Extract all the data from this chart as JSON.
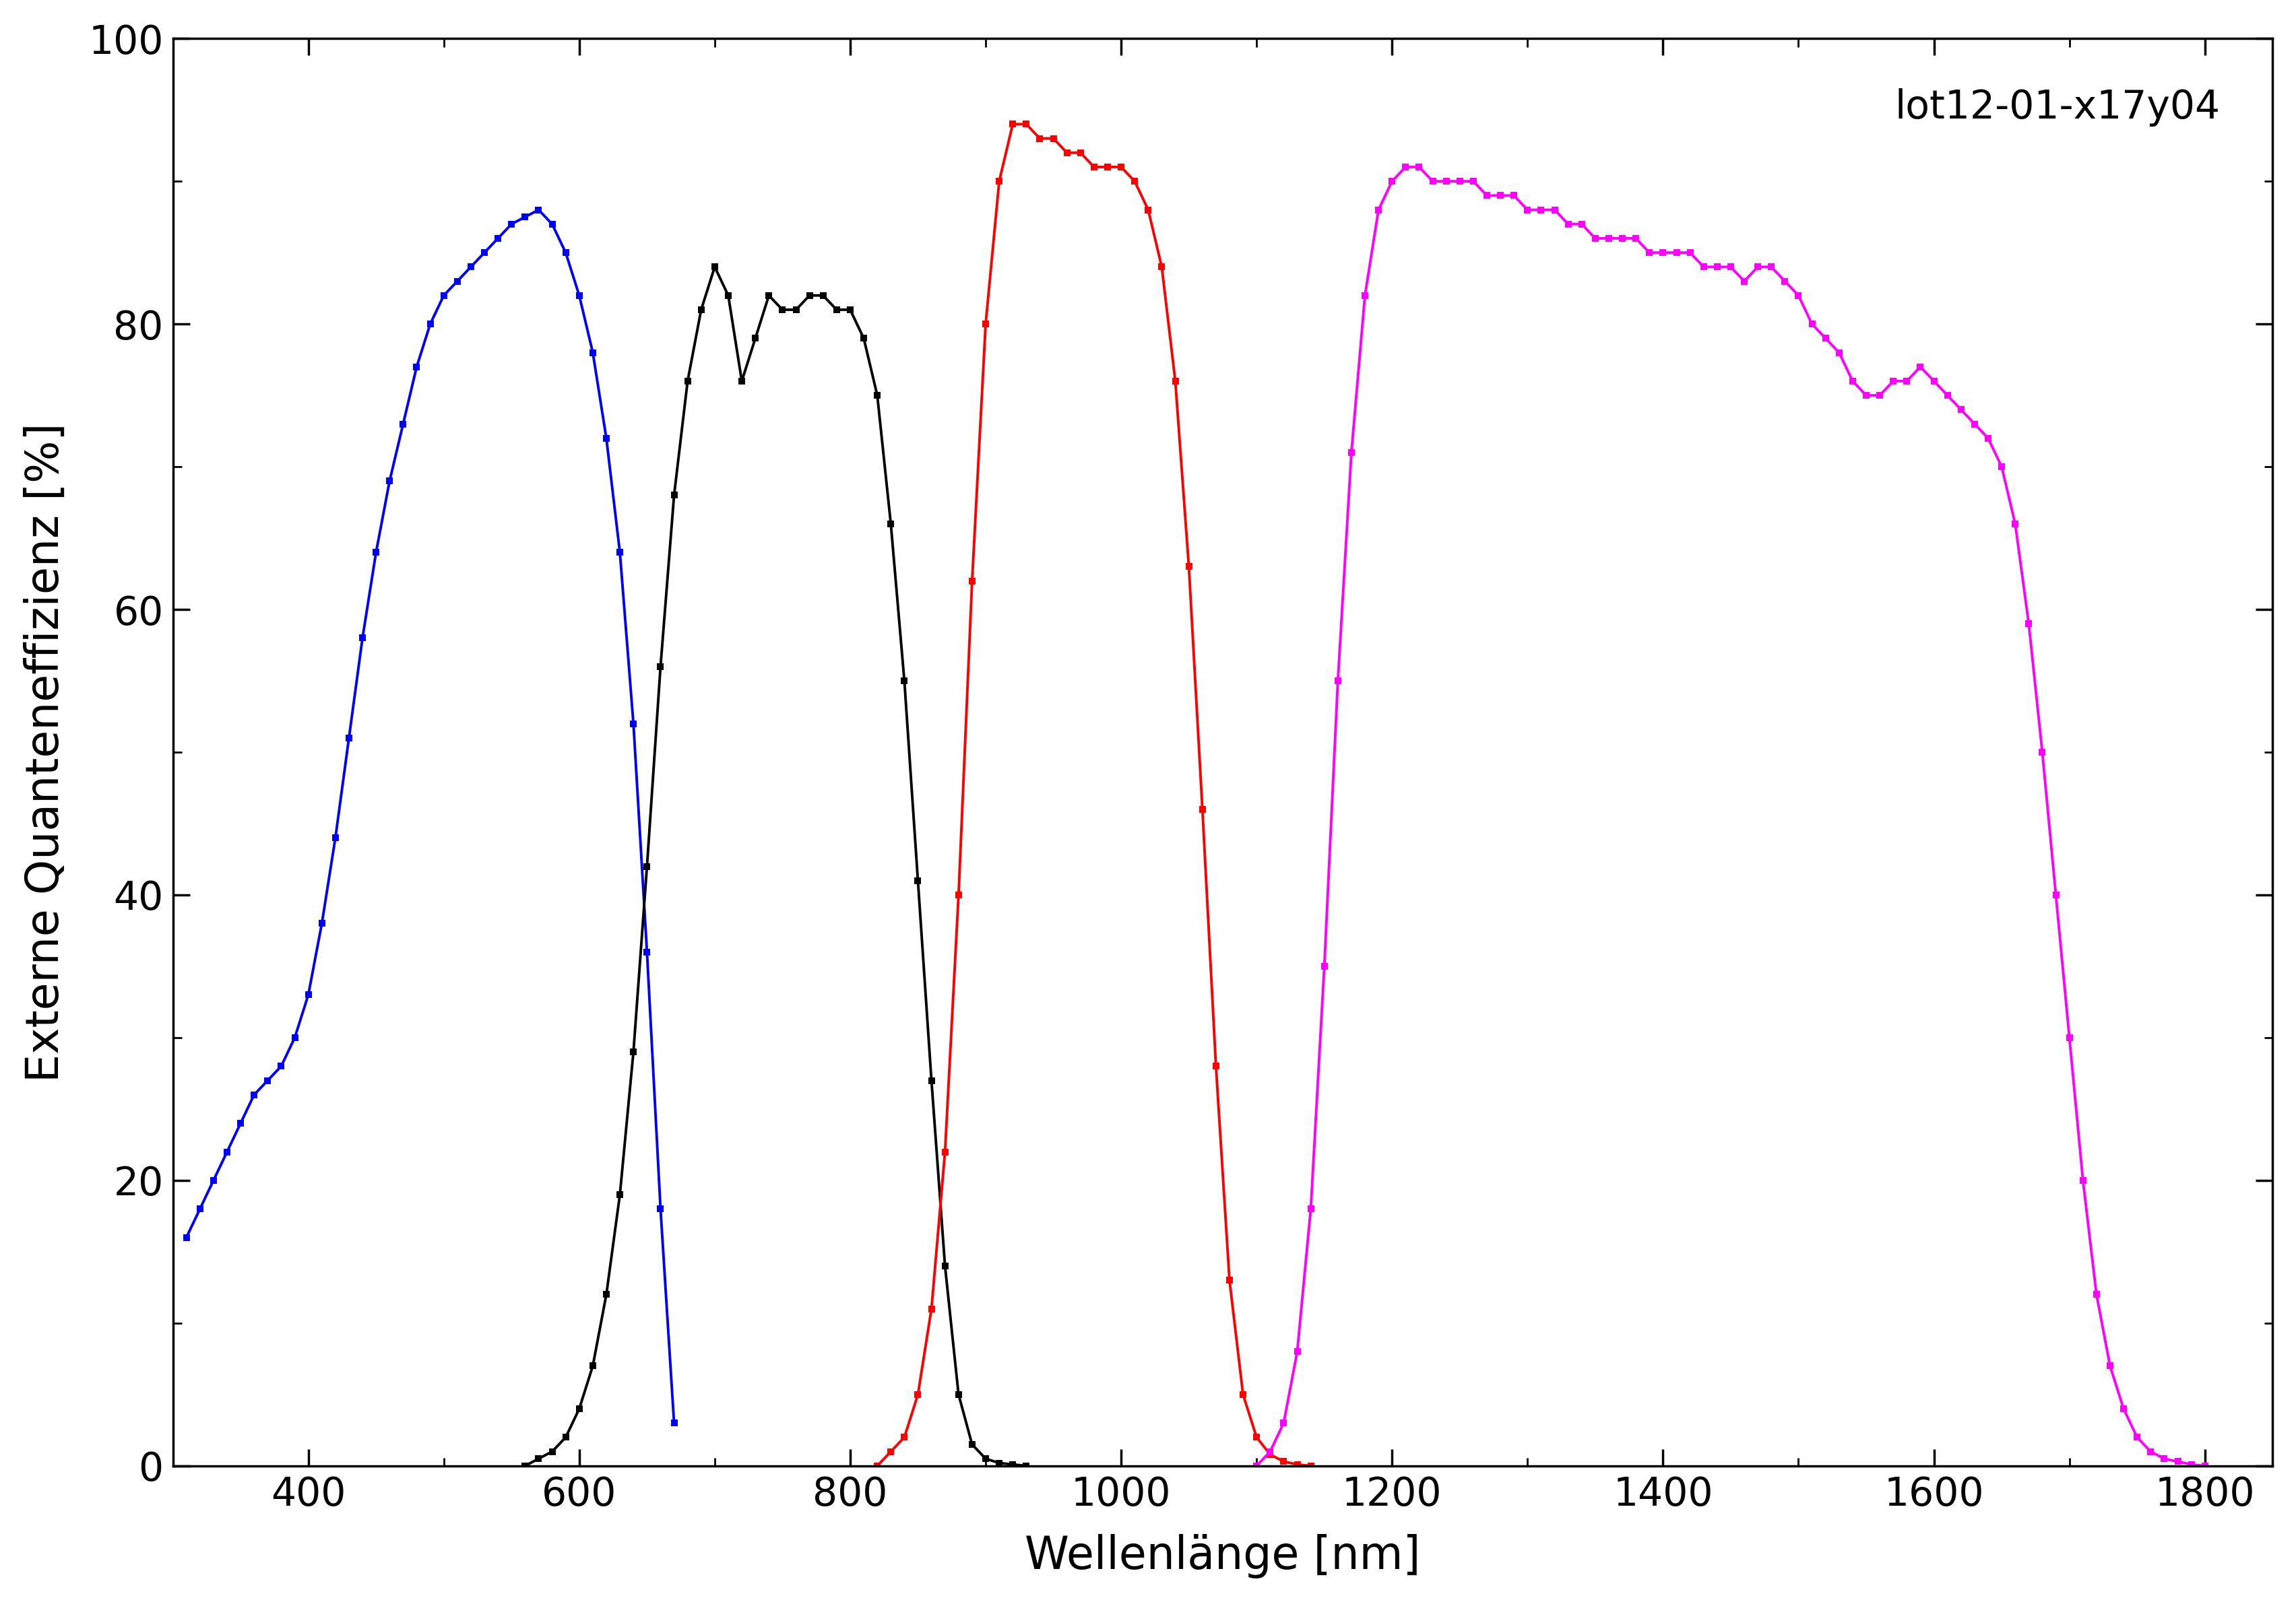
{
  "title": "lot12-01-x17y04",
  "xlabel": "Wellenlänge [nm]",
  "ylabel": "Externe Quanteneffizienz [%]",
  "xlim": [
    300,
    1850
  ],
  "ylim": [
    0,
    100
  ],
  "xticks": [
    400,
    600,
    800,
    1000,
    1200,
    1400,
    1600,
    1800
  ],
  "yticks": [
    0,
    20,
    40,
    60,
    80,
    100
  ],
  "background_color": "#ffffff",
  "line_width": 2.8,
  "marker_size": 7.0,
  "curves": {
    "blue": {
      "color": "#0000ff",
      "x": [
        310,
        320,
        330,
        340,
        350,
        360,
        370,
        380,
        390,
        400,
        410,
        420,
        430,
        440,
        450,
        460,
        470,
        480,
        490,
        500,
        510,
        520,
        530,
        540,
        550,
        560,
        570,
        580,
        590,
        600,
        610,
        620,
        630,
        640,
        650,
        660,
        670
      ],
      "y": [
        16,
        18,
        20,
        22,
        24,
        26,
        27,
        28,
        30,
        33,
        38,
        44,
        51,
        58,
        64,
        69,
        73,
        77,
        80,
        82,
        83,
        84,
        85,
        86,
        87,
        87.5,
        88,
        87,
        85,
        82,
        78,
        72,
        64,
        52,
        36,
        18,
        3
      ]
    },
    "black": {
      "color": "#000000",
      "x": [
        560,
        570,
        580,
        590,
        600,
        610,
        620,
        630,
        640,
        650,
        660,
        670,
        680,
        690,
        700,
        710,
        720,
        730,
        740,
        750,
        760,
        770,
        780,
        790,
        800,
        810,
        820,
        830,
        840,
        850,
        860,
        870,
        880,
        890,
        900,
        910,
        920,
        930
      ],
      "y": [
        0,
        0.5,
        1,
        2,
        4,
        7,
        12,
        19,
        29,
        42,
        56,
        68,
        76,
        81,
        84,
        82,
        76,
        79,
        82,
        81,
        81,
        82,
        82,
        81,
        81,
        79,
        75,
        66,
        55,
        41,
        27,
        14,
        5,
        1.5,
        0.5,
        0.2,
        0.1,
        0
      ]
    },
    "red": {
      "color": "#ff0000",
      "x": [
        820,
        830,
        840,
        850,
        860,
        870,
        880,
        890,
        900,
        910,
        920,
        930,
        940,
        950,
        960,
        970,
        980,
        990,
        1000,
        1010,
        1020,
        1030,
        1040,
        1050,
        1060,
        1070,
        1080,
        1090,
        1100,
        1110,
        1120,
        1130,
        1140
      ],
      "y": [
        0,
        1,
        2,
        5,
        11,
        22,
        40,
        62,
        80,
        90,
        94,
        94,
        93,
        93,
        92,
        92,
        91,
        91,
        91,
        90,
        88,
        84,
        76,
        63,
        46,
        28,
        13,
        5,
        2,
        0.8,
        0.3,
        0.1,
        0
      ]
    },
    "magenta": {
      "color": "#ff00ff",
      "x": [
        1100,
        1110,
        1120,
        1130,
        1140,
        1150,
        1160,
        1170,
        1180,
        1190,
        1200,
        1210,
        1220,
        1230,
        1240,
        1250,
        1260,
        1270,
        1280,
        1290,
        1300,
        1310,
        1320,
        1330,
        1340,
        1350,
        1360,
        1370,
        1380,
        1390,
        1400,
        1410,
        1420,
        1430,
        1440,
        1450,
        1460,
        1470,
        1480,
        1490,
        1500,
        1510,
        1520,
        1530,
        1540,
        1550,
        1560,
        1570,
        1580,
        1590,
        1600,
        1610,
        1620,
        1630,
        1640,
        1650,
        1660,
        1670,
        1680,
        1690,
        1700,
        1710,
        1720,
        1730,
        1740,
        1750,
        1760,
        1770,
        1780,
        1790,
        1800
      ],
      "y": [
        0,
        1,
        3,
        8,
        18,
        35,
        55,
        71,
        82,
        88,
        90,
        91,
        91,
        90,
        90,
        90,
        90,
        89,
        89,
        89,
        88,
        88,
        88,
        87,
        87,
        86,
        86,
        86,
        86,
        85,
        85,
        85,
        85,
        84,
        84,
        84,
        83,
        84,
        84,
        83,
        82,
        80,
        79,
        78,
        76,
        75,
        75,
        76,
        76,
        77,
        76,
        75,
        74,
        73,
        72,
        70,
        66,
        59,
        50,
        40,
        30,
        20,
        12,
        7,
        4,
        2,
        1,
        0.5,
        0.3,
        0.1,
        0
      ]
    }
  }
}
